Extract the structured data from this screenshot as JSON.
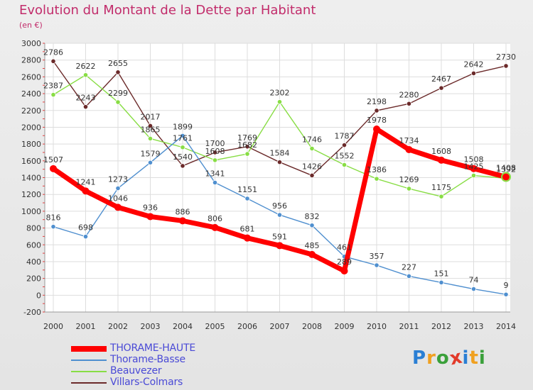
{
  "title": "Evolution du Montant de la Dette par Habitant",
  "subtitle": "(en €)",
  "chart_data": {
    "type": "line",
    "title": "Evolution du Montant de la Dette par Habitant",
    "subtitle": "(en €)",
    "xlabel": "",
    "ylabel": "",
    "x": [
      "2000",
      "2001",
      "2002",
      "2003",
      "2004",
      "2005",
      "2006",
      "2007",
      "2008",
      "2009",
      "2010",
      "2011",
      "2012",
      "2013",
      "2014"
    ],
    "y_ticks": [
      "-200",
      "0",
      "200",
      "400",
      "600",
      "800",
      "1000",
      "1200",
      "1400",
      "1600",
      "1800",
      "2000",
      "2200",
      "2400",
      "2600",
      "2800",
      "3000"
    ],
    "ylim": [
      -200,
      3000
    ],
    "grid": true,
    "legend_position": "bottom-left",
    "series": [
      {
        "name": "THORAME-HAUTE",
        "color": "#ff0000",
        "values": [
          1507,
          1241,
          1046,
          936,
          886,
          806,
          681,
          591,
          485,
          289,
          1978,
          1734,
          1608,
          1508,
          1408
        ],
        "labels": [
          "1507",
          "1241",
          "1046",
          "936",
          "886",
          "806",
          "681",
          "591",
          "485",
          "289",
          "1978",
          "1734",
          "1608",
          "1508",
          "1408"
        ]
      },
      {
        "name": "Thorame-Basse",
        "color": "#4f8fcf",
        "values": [
          816,
          698,
          1273,
          1579,
          1899,
          1341,
          1151,
          956,
          832,
          461,
          357,
          227,
          151,
          74,
          9
        ],
        "labels": [
          "816",
          "698",
          "1273",
          "1579",
          "1899",
          "1341",
          "1151",
          "956",
          "832",
          "461",
          "357",
          "227",
          "151",
          "74",
          "9"
        ]
      },
      {
        "name": "Beauvezer",
        "color": "#88dd44",
        "values": [
          2387,
          2622,
          2299,
          1865,
          1761,
          1608,
          1682,
          2302,
          1746,
          1552,
          1386,
          1269,
          1175,
          1425,
          1392
        ],
        "labels": [
          "2387",
          "2622",
          "2299",
          "1865",
          "1761",
          "1608",
          "1682",
          "2302",
          "1746",
          "1552",
          "1386",
          "1269",
          "1175",
          "1425",
          "1392"
        ]
      },
      {
        "name": "Villars-Colmars",
        "color": "#6b2a2a",
        "values": [
          2786,
          2243,
          2655,
          2017,
          1540,
          1700,
          1769,
          1584,
          1426,
          1787,
          2198,
          2280,
          2467,
          2642,
          2730
        ],
        "labels": [
          "2786",
          "2243",
          "2655",
          "2017",
          "1540",
          "1700",
          "1769",
          "1584",
          "1426",
          "1787",
          "2198",
          "2280",
          "2467",
          "2642",
          "2730"
        ]
      }
    ]
  },
  "legend": {
    "items": [
      {
        "label": "THORAME-HAUTE",
        "color": "#ff0000"
      },
      {
        "label": "Thorame-Basse",
        "color": "#4f8fcf"
      },
      {
        "label": "Beauvezer",
        "color": "#88dd44"
      },
      {
        "label": "Villars-Colmars",
        "color": "#6b2a2a"
      }
    ]
  },
  "brand": {
    "letters": [
      "P",
      "r",
      "o",
      "x",
      "i",
      "t",
      "i"
    ],
    "colors": [
      "#2a7fd4",
      "#f0a020",
      "#3aa03a",
      "#e23a2a",
      "#2a7fd4",
      "#f0a020",
      "#3aa03a"
    ]
  }
}
